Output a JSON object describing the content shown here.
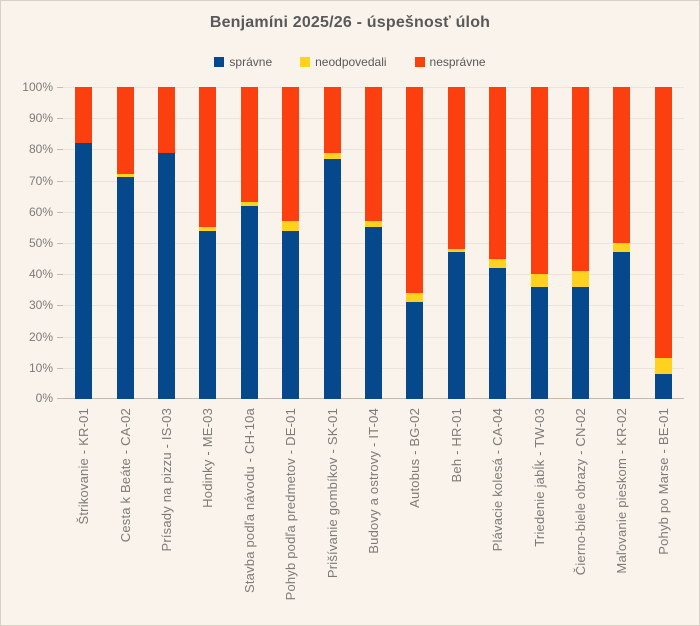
{
  "chart": {
    "background": "#F9F3EC",
    "border_color": "#D8D1C7",
    "title_color": "#595959",
    "axis_text_color": "#7E7B76",
    "gridline_color": "#EAE4DC",
    "axis_line_color": "#C3BCB1"
  },
  "chart_data": {
    "type": "bar",
    "stacked": true,
    "orientation": "vertical",
    "title": "Benjamíni 2025/26 - úspešnosť úloh",
    "xlabel": "",
    "ylabel": "",
    "ylim": [
      0,
      100
    ],
    "grid": true,
    "legend_position": "top",
    "yticks": [
      "0%",
      "10%",
      "20%",
      "30%",
      "40%",
      "50%",
      "60%",
      "70%",
      "80%",
      "90%",
      "100%"
    ],
    "categories": [
      "Štrikovanie - KR-01",
      "Cesta k Beáte - CA-02",
      "Prísady na pizzu - IS-03",
      "Hodinky - ME-03",
      "Stavba podľa návodu - CH-10a",
      "Pohyb podľa predmetov - DE-01",
      "Prišívanie gombíkov - SK-01",
      "Budovy a ostrovy - IT-04",
      "Autobus - BG-02",
      "Beh - HR-01",
      "Plávacie kolesá - CA-04",
      "Triedenie jabĺk - TW-03",
      "Čierno-biele obrazy - CN-02",
      "Maľovanie pieskom - KR-02",
      "Pohyb po Marse - BE-01"
    ],
    "series": [
      {
        "name": "správne",
        "key": "spravne",
        "color": "#05498C",
        "values": [
          82,
          71,
          79,
          54,
          62,
          54,
          77,
          55,
          31,
          47,
          42,
          36,
          36,
          47,
          8
        ]
      },
      {
        "name": "neodpovedali",
        "key": "neodpovedali",
        "color": "#FFD21F",
        "values": [
          0,
          1,
          0,
          1,
          1,
          3,
          2,
          2,
          3,
          1,
          3,
          4,
          5,
          3,
          5
        ]
      },
      {
        "name": "nesprávne",
        "key": "nespravne",
        "color": "#FB3F0E",
        "values": [
          18,
          28,
          21,
          45,
          37,
          43,
          21,
          43,
          66,
          52,
          55,
          60,
          59,
          50,
          87
        ]
      }
    ]
  }
}
